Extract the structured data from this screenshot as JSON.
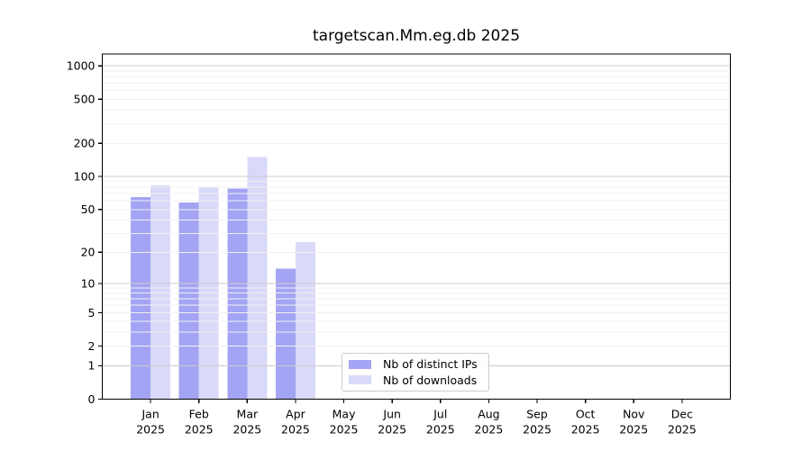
{
  "chart_data": {
    "type": "bar",
    "title": "targetscan.Mm.eg.db 2025",
    "months": [
      "Jan",
      "Feb",
      "Mar",
      "Apr",
      "May",
      "Jun",
      "Jul",
      "Aug",
      "Sep",
      "Oct",
      "Nov",
      "Dec"
    ],
    "year": "2025",
    "series": [
      {
        "name": "Nb of distinct IPs",
        "color": "#a4a4f4",
        "values": [
          65,
          58,
          78,
          14,
          0,
          0,
          0,
          0,
          0,
          0,
          0,
          0
        ]
      },
      {
        "name": "Nb of downloads",
        "color": "#d9d9f9",
        "values": [
          83,
          81,
          150,
          25,
          0,
          0,
          0,
          0,
          0,
          0,
          0,
          0
        ]
      }
    ],
    "yscale": "log1p",
    "yticks": [
      0,
      1,
      2,
      5,
      10,
      20,
      50,
      100,
      200,
      500,
      1000
    ],
    "ylim": [
      0,
      1280
    ],
    "grid": true,
    "legend_position": "lower center"
  },
  "colors": {
    "major_grid": "#cccccc",
    "minor_grid": "#f0f0f0",
    "axis": "#000000",
    "background": "#ffffff"
  }
}
